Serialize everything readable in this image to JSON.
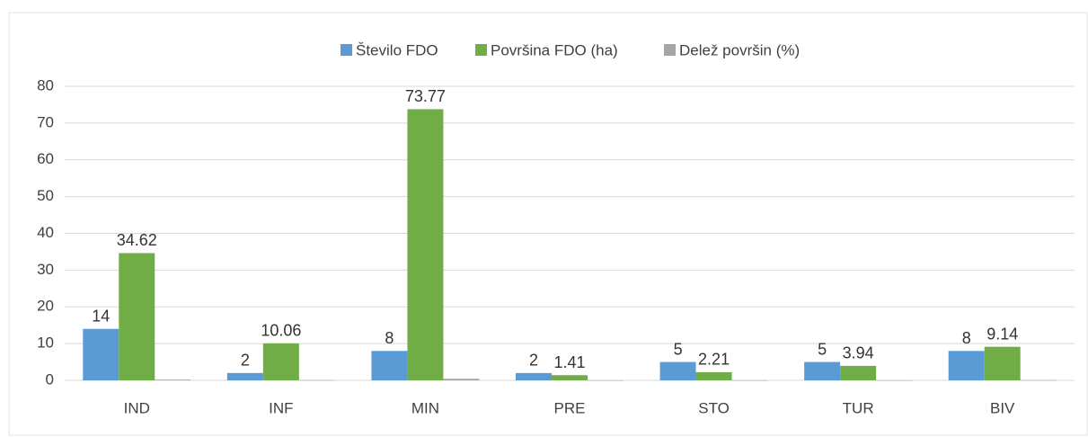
{
  "chart_data": {
    "type": "bar",
    "categories": [
      "IND",
      "INF",
      "MIN",
      "PRE",
      "STO",
      "TUR",
      "BIV"
    ],
    "series": [
      {
        "name": "Število FDO",
        "color": "#5b9bd5",
        "values": [
          14,
          2,
          8,
          2,
          5,
          5,
          8
        ],
        "show_labels": true
      },
      {
        "name": "Površina FDO (ha)",
        "color": "#70ad47",
        "values": [
          34.62,
          10.06,
          73.77,
          1.41,
          2.21,
          3.94,
          9.14
        ],
        "show_labels": true
      },
      {
        "name": "Delež površin (%)",
        "color": "#a5a5a5",
        "values": [
          0.2,
          0.06,
          0.43,
          0.01,
          0.01,
          0.02,
          0.05
        ],
        "show_labels": false
      }
    ],
    "ylim": [
      0,
      80
    ],
    "yticks": [
      0,
      10,
      20,
      30,
      40,
      50,
      60,
      70,
      80
    ],
    "grid": true,
    "legend": "top"
  }
}
